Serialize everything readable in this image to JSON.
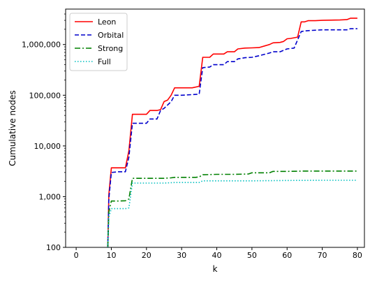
{
  "chart_data": {
    "type": "line",
    "title": "",
    "xlabel": "k",
    "ylabel": "Cumulative nodes",
    "xlim": [
      -3,
      82
    ],
    "ylim": [
      100,
      5000000
    ],
    "yscale": "log",
    "xticks": [
      0,
      10,
      20,
      30,
      40,
      50,
      60,
      70,
      80
    ],
    "xtick_labels": [
      "0",
      "10",
      "20",
      "30",
      "40",
      "50",
      "60",
      "70",
      "80"
    ],
    "yticks": [
      100,
      1000,
      10000,
      100000,
      1000000
    ],
    "ytick_labels": [
      "100",
      "1,000",
      "10,000",
      "100,000",
      "1,000,000"
    ],
    "legend": {
      "position": "top-left",
      "entries": [
        "Leon",
        "Orbital",
        "Strong",
        "Full"
      ]
    },
    "grid": false,
    "series": [
      {
        "name": "Leon",
        "color": "#ff0000",
        "style": "solid",
        "points": [
          [
            9,
            100
          ],
          [
            9.3,
            1100
          ],
          [
            10,
            3700
          ],
          [
            12,
            3700
          ],
          [
            14,
            3700
          ],
          [
            15,
            8000
          ],
          [
            16,
            42000
          ],
          [
            18,
            42000
          ],
          [
            20,
            42000
          ],
          [
            21,
            50000
          ],
          [
            23,
            50000
          ],
          [
            24,
            52000
          ],
          [
            25,
            75000
          ],
          [
            26,
            80000
          ],
          [
            27,
            100000
          ],
          [
            28,
            140000
          ],
          [
            30,
            140000
          ],
          [
            33,
            140000
          ],
          [
            35,
            150000
          ],
          [
            36,
            560000
          ],
          [
            38,
            560000
          ],
          [
            39,
            650000
          ],
          [
            40,
            650000
          ],
          [
            42,
            650000
          ],
          [
            43,
            720000
          ],
          [
            45,
            720000
          ],
          [
            46,
            820000
          ],
          [
            48,
            850000
          ],
          [
            50,
            860000
          ],
          [
            52,
            870000
          ],
          [
            55,
            1000000
          ],
          [
            56,
            1080000
          ],
          [
            58,
            1100000
          ],
          [
            59,
            1150000
          ],
          [
            60,
            1300000
          ],
          [
            61,
            1320000
          ],
          [
            63,
            1400000
          ],
          [
            64,
            2800000
          ],
          [
            65,
            2800000
          ],
          [
            66,
            2950000
          ],
          [
            68,
            2950000
          ],
          [
            70,
            3000000
          ],
          [
            75,
            3050000
          ],
          [
            77,
            3100000
          ],
          [
            78,
            3300000
          ],
          [
            80,
            3300000
          ]
        ]
      },
      {
        "name": "Orbital",
        "color": "#0000cc",
        "style": "dashed",
        "points": [
          [
            9,
            100
          ],
          [
            9.3,
            900
          ],
          [
            10,
            3000
          ],
          [
            12,
            3100
          ],
          [
            14,
            3100
          ],
          [
            15,
            6000
          ],
          [
            16,
            28000
          ],
          [
            18,
            28000
          ],
          [
            20,
            28000
          ],
          [
            21,
            34000
          ],
          [
            23,
            34000
          ],
          [
            24,
            50000
          ],
          [
            25,
            55000
          ],
          [
            27,
            75000
          ],
          [
            28,
            100000
          ],
          [
            30,
            100000
          ],
          [
            35,
            105000
          ],
          [
            36,
            350000
          ],
          [
            38,
            360000
          ],
          [
            39,
            400000
          ],
          [
            42,
            400000
          ],
          [
            43,
            460000
          ],
          [
            45,
            460000
          ],
          [
            46,
            520000
          ],
          [
            48,
            550000
          ],
          [
            50,
            560000
          ],
          [
            52,
            600000
          ],
          [
            55,
            680000
          ],
          [
            56,
            720000
          ],
          [
            58,
            720000
          ],
          [
            60,
            820000
          ],
          [
            62,
            850000
          ],
          [
            64,
            1800000
          ],
          [
            65,
            1850000
          ],
          [
            67,
            1900000
          ],
          [
            70,
            1950000
          ],
          [
            77,
            1950000
          ],
          [
            78,
            2050000
          ],
          [
            80,
            2050000
          ]
        ]
      },
      {
        "name": "Strong",
        "color": "#008000",
        "style": "dashdot",
        "points": [
          [
            9,
            100
          ],
          [
            9.3,
            500
          ],
          [
            10,
            820
          ],
          [
            12,
            820
          ],
          [
            14,
            830
          ],
          [
            15,
            900
          ],
          [
            16,
            2300
          ],
          [
            20,
            2300
          ],
          [
            25,
            2300
          ],
          [
            27,
            2350
          ],
          [
            28,
            2400
          ],
          [
            34,
            2400
          ],
          [
            35,
            2450
          ],
          [
            36,
            2700
          ],
          [
            40,
            2750
          ],
          [
            45,
            2750
          ],
          [
            49,
            2800
          ],
          [
            50,
            2950
          ],
          [
            55,
            2950
          ],
          [
            56,
            3150
          ],
          [
            60,
            3150
          ],
          [
            65,
            3200
          ],
          [
            80,
            3200
          ]
        ]
      },
      {
        "name": "Full",
        "color": "#00bfbf",
        "style": "dotted",
        "points": [
          [
            9,
            100
          ],
          [
            9.3,
            400
          ],
          [
            10,
            580
          ],
          [
            12,
            580
          ],
          [
            14,
            580
          ],
          [
            15,
            600
          ],
          [
            16,
            1850
          ],
          [
            20,
            1850
          ],
          [
            25,
            1850
          ],
          [
            28,
            1900
          ],
          [
            35,
            1900
          ],
          [
            36,
            2050
          ],
          [
            40,
            2050
          ],
          [
            50,
            2050
          ],
          [
            60,
            2080
          ],
          [
            70,
            2100
          ],
          [
            80,
            2100
          ]
        ]
      }
    ]
  }
}
